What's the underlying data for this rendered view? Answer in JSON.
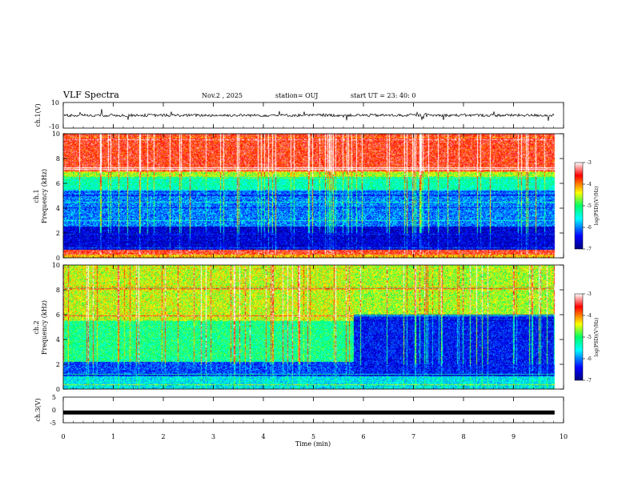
{
  "header": {
    "title": "VLF Spectra",
    "date": "Nov.2 , 2025",
    "station": "station= OUJ",
    "start_ut": "start UT = 23: 40: 0"
  },
  "chart_data": [
    {
      "type": "line",
      "name": "ch1-waveform",
      "ylabel": "ch.1(V)",
      "ylim": [
        -10,
        10
      ],
      "yticks": [
        "10",
        "-10"
      ],
      "xlim": [
        0,
        10
      ],
      "description_level_V": 0
    },
    {
      "type": "heatmap",
      "name": "ch1-spectrogram",
      "ylabel": "ch.1\nFrequency (kHz)",
      "ylabel_lines": [
        "ch.1",
        "Frequency (kHz)"
      ],
      "ylim": [
        0,
        10
      ],
      "yticks": [
        "0",
        "2",
        "4",
        "6",
        "8",
        "10"
      ],
      "xlim": [
        0,
        10
      ],
      "colorbar": {
        "label": "log(PSD)(V²/Hz)",
        "ticks": [
          "-3",
          "-4",
          "-5",
          "-6",
          "-7"
        ],
        "range": [
          -7,
          -3
        ]
      },
      "bands_kHz_to_level": [
        {
          "from": 0.0,
          "to": 0.3,
          "level": -4.2
        },
        {
          "from": 0.3,
          "to": 0.6,
          "level": -3.6
        },
        {
          "from": 0.6,
          "to": 2.5,
          "level": -6.6
        },
        {
          "from": 2.5,
          "to": 5.5,
          "level": -6.0
        },
        {
          "from": 5.5,
          "to": 6.5,
          "level": -5.3
        },
        {
          "from": 6.5,
          "to": 7.0,
          "level": -4.6
        },
        {
          "from": 7.0,
          "to": 10.0,
          "level": -3.6
        }
      ]
    },
    {
      "type": "heatmap",
      "name": "ch2-spectrogram",
      "ylabel": "ch.2\nFrequency (kHz)",
      "ylabel_lines": [
        "ch.2",
        "Frequency (kHz)"
      ],
      "ylim": [
        0,
        10
      ],
      "yticks": [
        "0",
        "2",
        "4",
        "6",
        "8",
        "10"
      ],
      "xlim": [
        0,
        10
      ],
      "colorbar": {
        "label": "log(PSD)(V²/Hz)",
        "ticks": [
          "-3",
          "-4",
          "-5",
          "-6",
          "-7"
        ],
        "range": [
          -7,
          -3
        ]
      },
      "change_time_min": 5.8,
      "bands_before_change": [
        {
          "from": 0.0,
          "to": 1.0,
          "level": -5.6
        },
        {
          "from": 1.0,
          "to": 2.2,
          "level": -6.2
        },
        {
          "from": 2.2,
          "to": 5.5,
          "level": -5.1
        },
        {
          "from": 5.5,
          "to": 10.0,
          "level": -4.5
        }
      ],
      "bands_after_change": [
        {
          "from": 0.0,
          "to": 1.0,
          "level": -5.6
        },
        {
          "from": 1.0,
          "to": 6.0,
          "level": -6.4
        },
        {
          "from": 6.0,
          "to": 10.0,
          "level": -4.6
        }
      ]
    },
    {
      "type": "line",
      "name": "ch3-waveform",
      "ylabel": "ch.3(V)",
      "ylim": [
        -5,
        5
      ],
      "yticks": [
        "5",
        "0",
        "-5"
      ],
      "xlim": [
        0,
        10
      ],
      "level_V": -1.0,
      "xlabel": "Time (min)",
      "xticks": [
        "0",
        "1",
        "2",
        "3",
        "4",
        "5",
        "6",
        "7",
        "8",
        "9",
        "10"
      ]
    }
  ]
}
